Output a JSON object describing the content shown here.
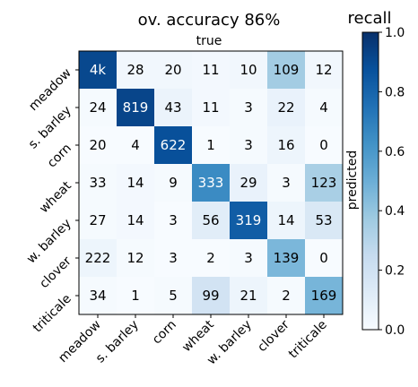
{
  "chart_data": {
    "type": "heatmap",
    "title": "ov. accuracy 86%",
    "xlabel": "true",
    "ylabel": "predicted",
    "colorbar_label": "recall",
    "colorbar_range": [
      0.0,
      1.0
    ],
    "colorbar_ticks": [
      "0.0",
      "0.2",
      "0.4",
      "0.6",
      "0.8",
      "1.0"
    ],
    "colormap": "Blues",
    "rows": [
      "meadow",
      "s. barley",
      "corn",
      "wheat",
      "w. barley",
      "clover",
      "triticale"
    ],
    "columns": [
      "meadow",
      "s. barley",
      "corn",
      "wheat",
      "w. barley",
      "clover",
      "triticale"
    ],
    "cell_labels": [
      [
        "4k",
        "28",
        "20",
        "11",
        "10",
        "109",
        "12"
      ],
      [
        "24",
        "819",
        "43",
        "11",
        "3",
        "22",
        "4"
      ],
      [
        "20",
        "4",
        "622",
        "1",
        "3",
        "16",
        "0"
      ],
      [
        "33",
        "14",
        "9",
        "333",
        "29",
        "3",
        "123"
      ],
      [
        "27",
        "14",
        "3",
        "56",
        "319",
        "14",
        "53"
      ],
      [
        "222",
        "12",
        "3",
        "2",
        "3",
        "139",
        "0"
      ],
      [
        "34",
        "1",
        "5",
        "99",
        "21",
        "2",
        "169"
      ]
    ],
    "recall": [
      [
        0.91,
        0.03,
        0.03,
        0.02,
        0.03,
        0.36,
        0.03
      ],
      [
        0.01,
        0.92,
        0.06,
        0.02,
        0.01,
        0.07,
        0.01
      ],
      [
        0.0,
        0.0,
        0.88,
        0.0,
        0.01,
        0.05,
        0.0
      ],
      [
        0.01,
        0.02,
        0.01,
        0.65,
        0.07,
        0.01,
        0.34
      ],
      [
        0.01,
        0.02,
        0.0,
        0.11,
        0.83,
        0.05,
        0.15
      ],
      [
        0.05,
        0.01,
        0.0,
        0.0,
        0.01,
        0.46,
        0.0
      ],
      [
        0.01,
        0.0,
        0.01,
        0.19,
        0.05,
        0.01,
        0.47
      ]
    ]
  }
}
